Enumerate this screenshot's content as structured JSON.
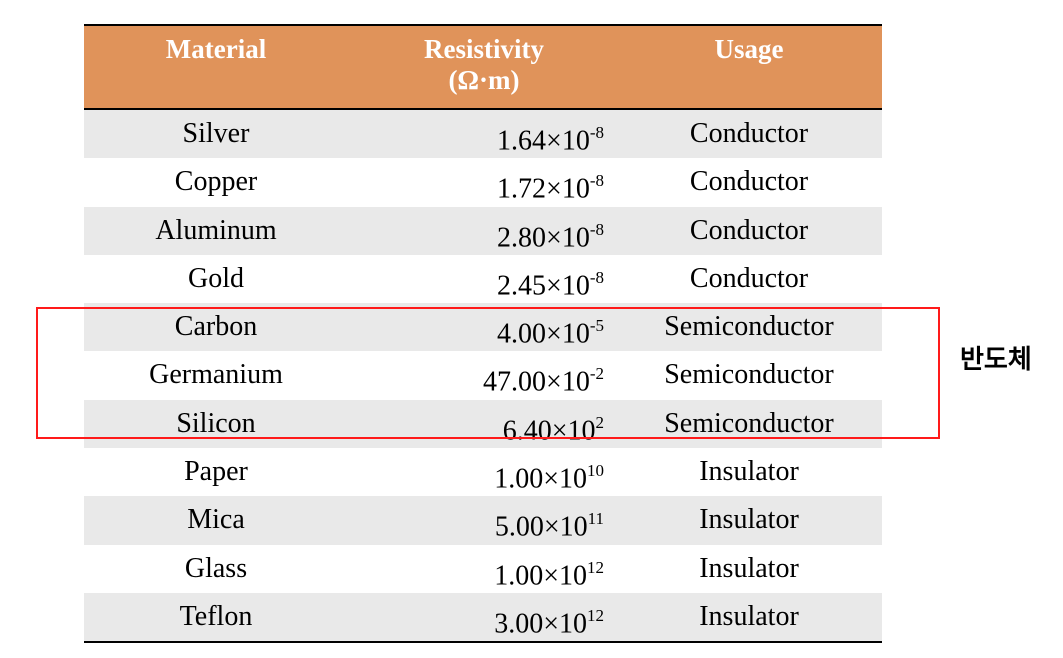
{
  "headers": {
    "material": "Material",
    "resistivity_line1": "Resistivity",
    "resistivity_line2": "(Ω·m)",
    "usage": "Usage"
  },
  "rows": [
    {
      "material": "Silver",
      "mantissa": "1.64×10",
      "exponent": "-8",
      "usage": "Conductor"
    },
    {
      "material": "Copper",
      "mantissa": "1.72×10",
      "exponent": "-8",
      "usage": "Conductor"
    },
    {
      "material": "Aluminum",
      "mantissa": "2.80×10",
      "exponent": "-8",
      "usage": "Conductor"
    },
    {
      "material": "Gold",
      "mantissa": "2.45×10",
      "exponent": "-8",
      "usage": "Conductor"
    },
    {
      "material": "Carbon",
      "mantissa": "4.00×10",
      "exponent": "-5",
      "usage": "Semiconductor"
    },
    {
      "material": "Germanium",
      "mantissa": "47.00×10",
      "exponent": "-2",
      "usage": "Semiconductor"
    },
    {
      "material": "Silicon",
      "mantissa": "6.40×10",
      "exponent": "2",
      "usage": "Semiconductor"
    },
    {
      "material": "Paper",
      "mantissa": "1.00×10",
      "exponent": "10",
      "usage": "Insulator"
    },
    {
      "material": "Mica",
      "mantissa": "5.00×10",
      "exponent": "11",
      "usage": "Insulator"
    },
    {
      "material": "Glass",
      "mantissa": "1.00×10",
      "exponent": "12",
      "usage": "Insulator"
    },
    {
      "material": "Teflon",
      "mantissa": "3.00×10",
      "exponent": "12",
      "usage": "Insulator"
    }
  ],
  "annotation": {
    "label": "반도체",
    "highlight_color": "#ff1a1a"
  },
  "colors": {
    "header_bg": "#e0935a",
    "row_shade": "#e9e9e9"
  }
}
